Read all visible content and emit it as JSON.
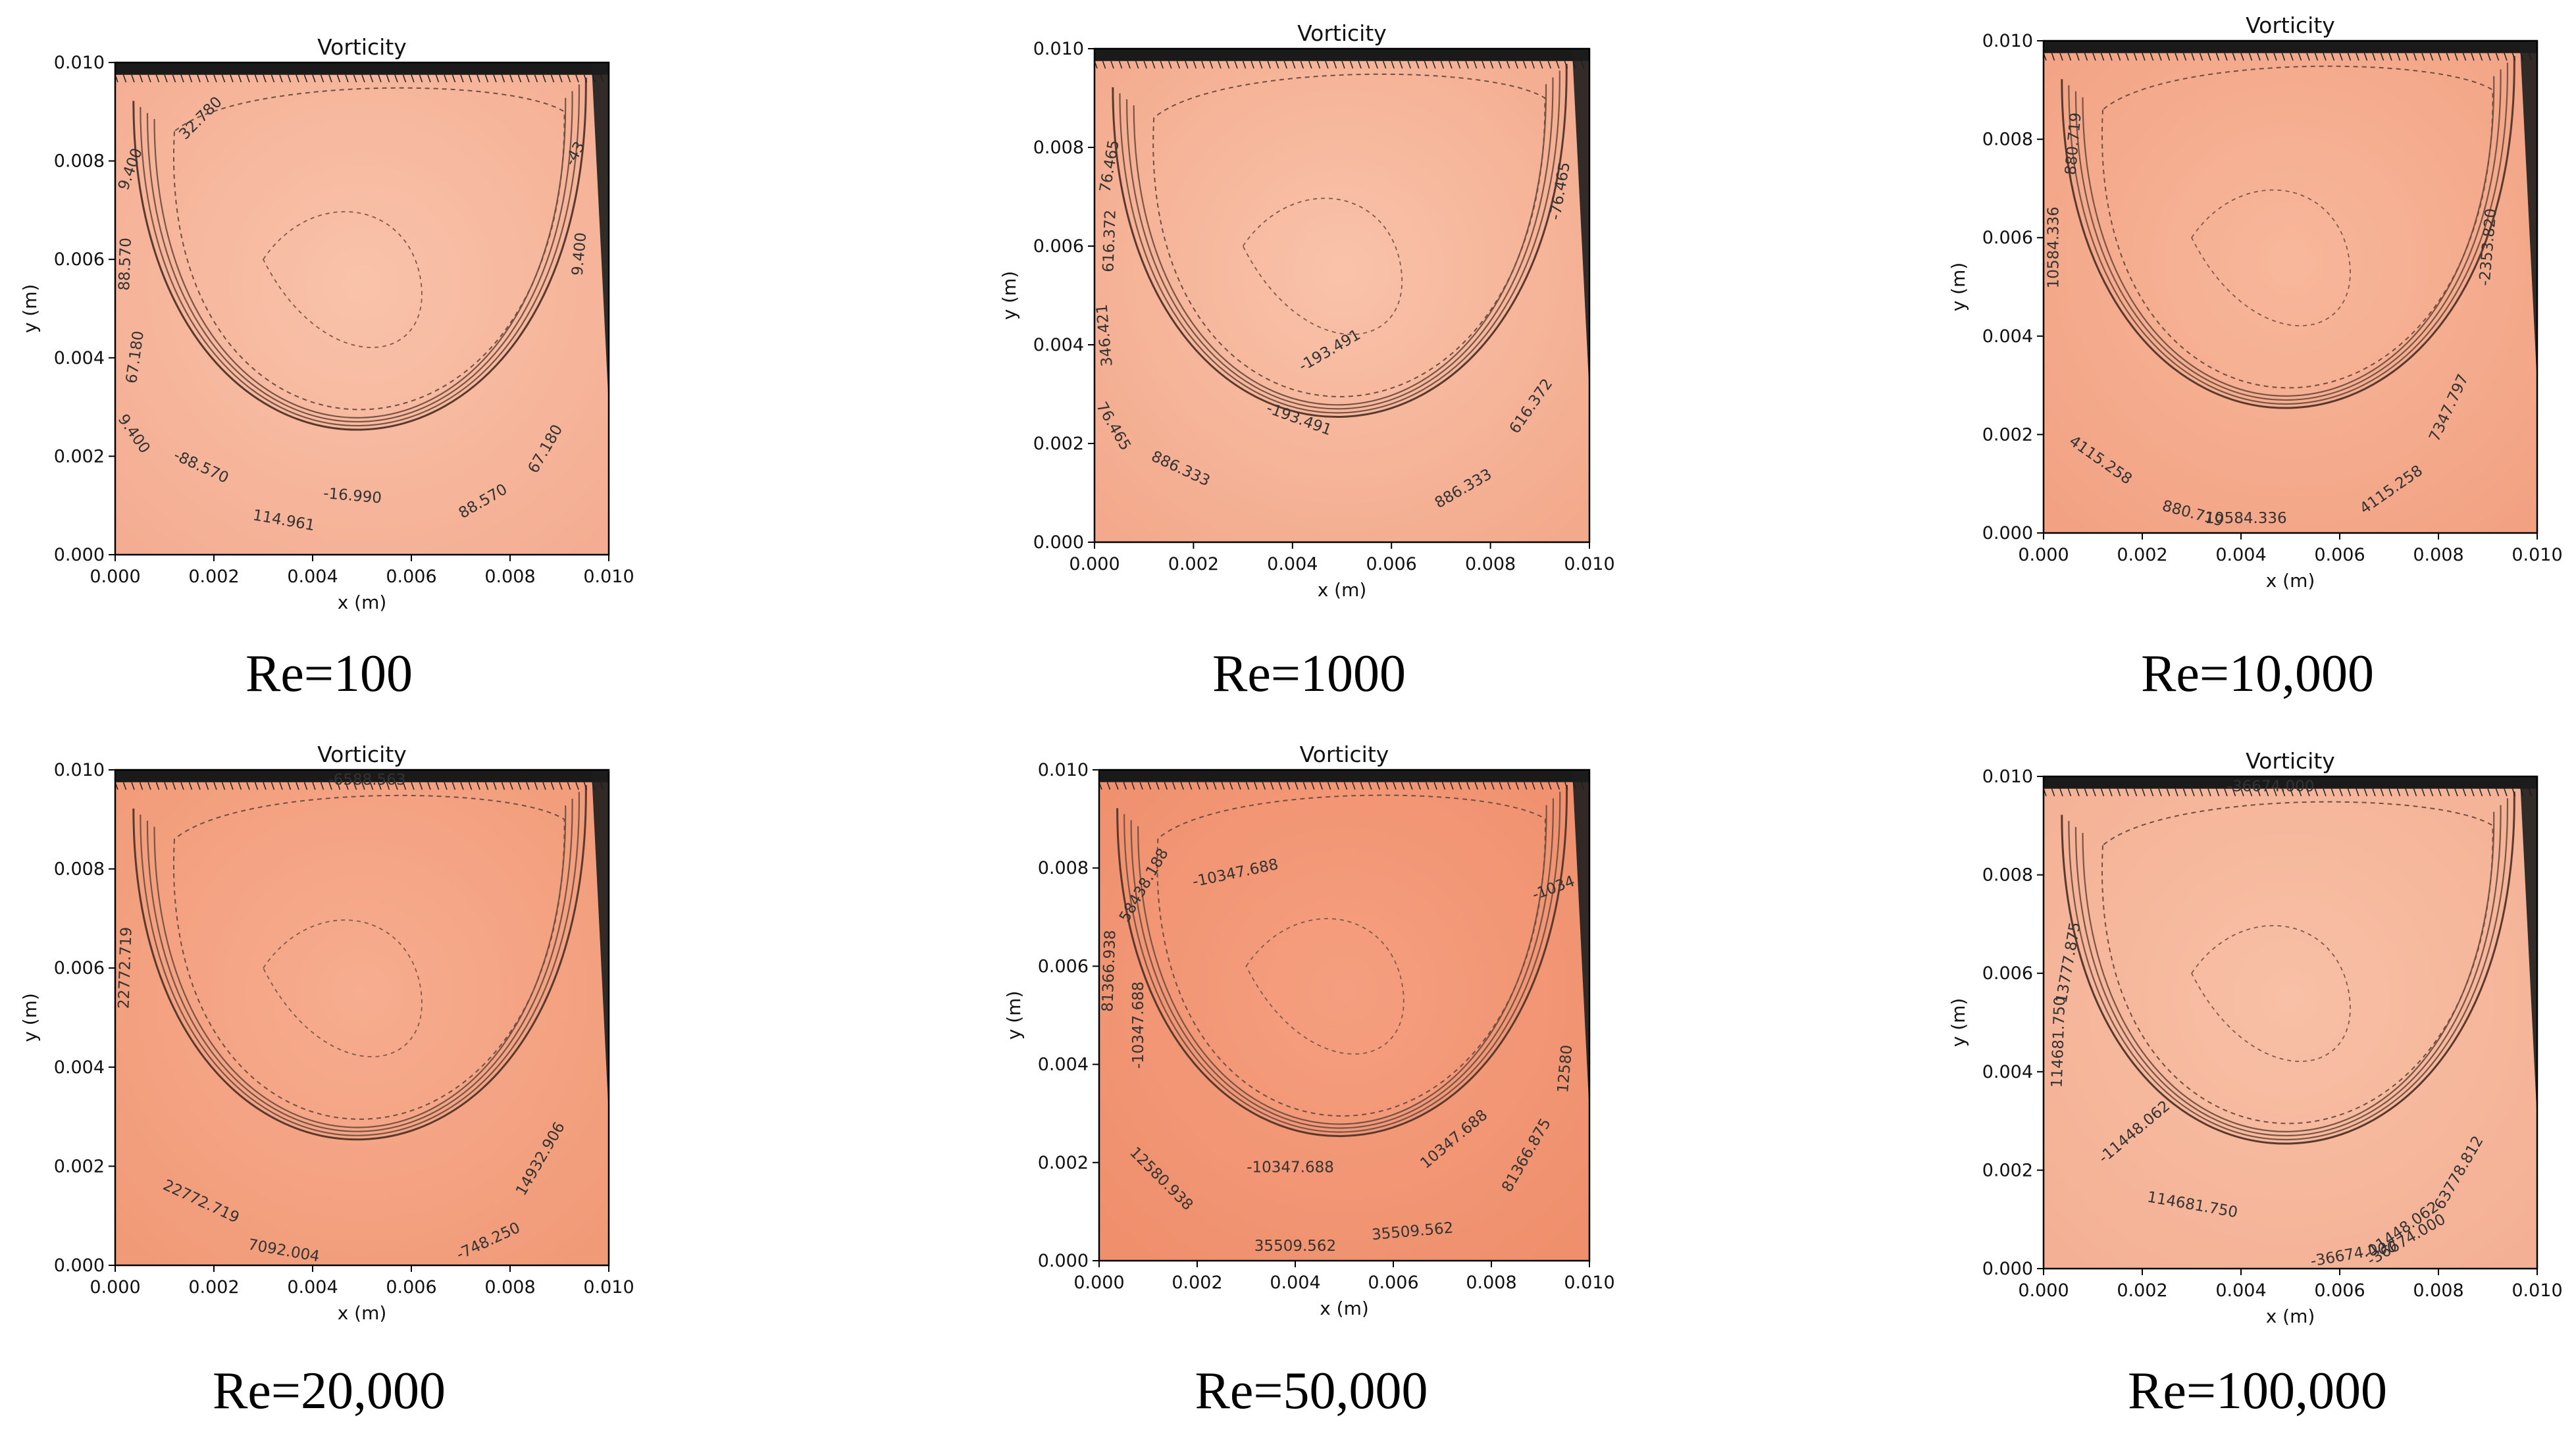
{
  "chart_data": [
    {
      "type": "heatmap",
      "title": "Vorticity",
      "caption": "Re=100",
      "xlabel": "x (m)",
      "ylabel": "y (m)",
      "xlim": [
        0,
        0.01
      ],
      "ylim": [
        0,
        0.01
      ],
      "xticks": [
        "0.000",
        "0.002",
        "0.004",
        "0.006",
        "0.008",
        "0.010"
      ],
      "yticks": [
        "0.000",
        "0.002",
        "0.004",
        "0.006",
        "0.008",
        "0.010"
      ],
      "fill_color": "#f9c3aa",
      "edge_color": "#f4ad92",
      "contour_labels": [
        {
          "text": "32.780",
          "x": 0.0018,
          "y": 0.0088,
          "angle": -45
        },
        {
          "text": "9.400",
          "x": 0.0004,
          "y": 0.0078,
          "angle": -70
        },
        {
          "text": "88.570",
          "x": 0.0003,
          "y": 0.0059,
          "angle": -88
        },
        {
          "text": "67.180",
          "x": 0.0005,
          "y": 0.004,
          "angle": -82
        },
        {
          "text": "9.400",
          "x": 0.0003,
          "y": 0.0024,
          "angle": 55
        },
        {
          "text": "-88.570",
          "x": 0.0017,
          "y": 0.0017,
          "angle": 25
        },
        {
          "text": "114.961",
          "x": 0.0034,
          "y": 0.0006,
          "angle": 10
        },
        {
          "text": "-16.990",
          "x": 0.0048,
          "y": 0.0011,
          "angle": 5
        },
        {
          "text": "88.570",
          "x": 0.0075,
          "y": 0.001,
          "angle": -30
        },
        {
          "text": "67.180",
          "x": 0.0088,
          "y": 0.0021,
          "angle": -60
        },
        {
          "text": "9.400",
          "x": 0.0095,
          "y": 0.0061,
          "angle": -85
        },
        {
          "text": "-43",
          "x": 0.0094,
          "y": 0.0081,
          "angle": -60
        }
      ]
    },
    {
      "type": "heatmap",
      "title": "Vorticity",
      "caption": "Re=1000",
      "xlabel": "x (m)",
      "ylabel": "y (m)",
      "xlim": [
        0,
        0.01
      ],
      "ylim": [
        0,
        0.01
      ],
      "xticks": [
        "0.000",
        "0.002",
        "0.004",
        "0.006",
        "0.008",
        "0.010"
      ],
      "yticks": [
        "0.000",
        "0.002",
        "0.004",
        "0.006",
        "0.008",
        "0.010"
      ],
      "fill_color": "#f9c3aa",
      "edge_color": "#f3a98c",
      "contour_labels": [
        {
          "text": "76.465",
          "x": 0.0004,
          "y": 0.0076,
          "angle": -80
        },
        {
          "text": "616.372",
          "x": 0.0004,
          "y": 0.0061,
          "angle": -88
        },
        {
          "text": "346.421",
          "x": 0.0003,
          "y": 0.0042,
          "angle": -95
        },
        {
          "text": "76.465",
          "x": 0.0003,
          "y": 0.0023,
          "angle": 60
        },
        {
          "text": "886.333",
          "x": 0.0017,
          "y": 0.0014,
          "angle": 25
        },
        {
          "text": "-193.491",
          "x": 0.0048,
          "y": 0.0038,
          "angle": -30
        },
        {
          "text": "-193.491",
          "x": 0.0041,
          "y": 0.0024,
          "angle": 20
        },
        {
          "text": "886.333",
          "x": 0.0075,
          "y": 0.001,
          "angle": -30
        },
        {
          "text": "616.372",
          "x": 0.0089,
          "y": 0.0027,
          "angle": -55
        },
        {
          "text": "-76.465",
          "x": 0.0095,
          "y": 0.0071,
          "angle": -80
        }
      ]
    },
    {
      "type": "heatmap",
      "title": "Vorticity",
      "caption": "Re=10,000",
      "xlabel": "x (m)",
      "ylabel": "y (m)",
      "xlim": [
        0,
        0.01
      ],
      "ylim": [
        0,
        0.01
      ],
      "xticks": [
        "0.000",
        "0.002",
        "0.004",
        "0.006",
        "0.008",
        "0.010"
      ],
      "yticks": [
        "0.000",
        "0.002",
        "0.004",
        "0.006",
        "0.008",
        "0.010"
      ],
      "fill_color": "#f8b79b",
      "edge_color": "#f2a283",
      "contour_labels": [
        {
          "text": "880.719",
          "x": 0.0007,
          "y": 0.0079,
          "angle": -85
        },
        {
          "text": "10584.336",
          "x": 0.0003,
          "y": 0.0058,
          "angle": -90
        },
        {
          "text": "4115.258",
          "x": 0.0011,
          "y": 0.0014,
          "angle": 35
        },
        {
          "text": "880.719",
          "x": 0.003,
          "y": 0.0003,
          "angle": 15
        },
        {
          "text": "10584.336",
          "x": 0.0041,
          "y": 0.0002,
          "angle": 0
        },
        {
          "text": "4115.258",
          "x": 0.0071,
          "y": 0.0008,
          "angle": -35
        },
        {
          "text": "7347.797",
          "x": 0.0083,
          "y": 0.0025,
          "angle": -65
        },
        {
          "text": "-2353.820",
          "x": 0.0091,
          "y": 0.0058,
          "angle": -85
        }
      ]
    },
    {
      "type": "heatmap",
      "title": "Vorticity",
      "caption": "Re=20,000",
      "xlabel": "x (m)",
      "ylabel": "y (m)",
      "xlim": [
        0,
        0.01
      ],
      "ylim": [
        0,
        0.01
      ],
      "xticks": [
        "0.000",
        "0.002",
        "0.004",
        "0.006",
        "0.008",
        "0.010"
      ],
      "yticks": [
        "0.000",
        "0.002",
        "0.004",
        "0.006",
        "0.008",
        "0.010"
      ],
      "fill_color": "#f7ad8f",
      "edge_color": "#f19a78",
      "contour_labels": [
        {
          "text": "22772.719",
          "x": 0.0003,
          "y": 0.006,
          "angle": -88
        },
        {
          "text": "22772.719",
          "x": 0.0017,
          "y": 0.0012,
          "angle": 25
        },
        {
          "text": "7092.004",
          "x": 0.0034,
          "y": 0.0002,
          "angle": 10
        },
        {
          "text": "-748.250",
          "x": 0.0076,
          "y": 0.0004,
          "angle": -25
        },
        {
          "text": "14932.906",
          "x": 0.0087,
          "y": 0.0021,
          "angle": -60
        },
        {
          "text": "-6588.563",
          "x": 0.0051,
          "y": 0.0097,
          "angle": 0
        }
      ]
    },
    {
      "type": "heatmap",
      "title": "Vorticity",
      "caption": "Re=50,000",
      "xlabel": "x (m)",
      "ylabel": "y (m)",
      "xlim": [
        0,
        0.01
      ],
      "ylim": [
        0,
        0.01
      ],
      "xticks": [
        "0.000",
        "0.002",
        "0.004",
        "0.006",
        "0.008",
        "0.010"
      ],
      "yticks": [
        "0.000",
        "0.002",
        "0.004",
        "0.006",
        "0.008",
        "0.010"
      ],
      "fill_color": "#f59f80",
      "edge_color": "#ef8f6c",
      "contour_labels": [
        {
          "text": "-10347.688",
          "x": 0.0028,
          "y": 0.0078,
          "angle": -12
        },
        {
          "text": "58438.188",
          "x": 0.001,
          "y": 0.0076,
          "angle": -60
        },
        {
          "text": "81366.938",
          "x": 0.0003,
          "y": 0.0059,
          "angle": -88
        },
        {
          "text": "-10347.688",
          "x": 0.0009,
          "y": 0.0048,
          "angle": -90
        },
        {
          "text": "-10347.688",
          "x": 0.0039,
          "y": 0.0018,
          "angle": 0
        },
        {
          "text": "12580.938",
          "x": 0.0012,
          "y": 0.0016,
          "angle": 45
        },
        {
          "text": "35509.562",
          "x": 0.004,
          "y": 0.0002,
          "angle": 0
        },
        {
          "text": "35509.562",
          "x": 0.0064,
          "y": 0.0005,
          "angle": -5
        },
        {
          "text": "10347.688",
          "x": 0.0073,
          "y": 0.0024,
          "angle": -40
        },
        {
          "text": "81366.875",
          "x": 0.0088,
          "y": 0.0021,
          "angle": -60
        },
        {
          "text": "12580",
          "x": 0.0096,
          "y": 0.0039,
          "angle": -85
        },
        {
          "text": "-1034",
          "x": 0.0093,
          "y": 0.0075,
          "angle": -20
        }
      ]
    },
    {
      "type": "heatmap",
      "title": "Vorticity",
      "caption": "Re=100,000",
      "xlabel": "x (m)",
      "ylabel": "y (m)",
      "xlim": [
        0,
        0.01
      ],
      "ylim": [
        0,
        0.01
      ],
      "xticks": [
        "0.000",
        "0.002",
        "0.004",
        "0.006",
        "0.008",
        "0.010"
      ],
      "yticks": [
        "0.000",
        "0.002",
        "0.004",
        "0.006",
        "0.008",
        "0.010"
      ],
      "fill_color": "#f8c0a6",
      "edge_color": "#f4b094",
      "contour_labels": [
        {
          "text": "13777.875",
          "x": 0.0006,
          "y": 0.0062,
          "angle": -80
        },
        {
          "text": "114681.750",
          "x": 0.0004,
          "y": 0.0046,
          "angle": -88
        },
        {
          "text": "-11448.062",
          "x": 0.0019,
          "y": 0.0027,
          "angle": -40
        },
        {
          "text": "114681.750",
          "x": 0.003,
          "y": 0.0012,
          "angle": 10
        },
        {
          "text": "-11448.062",
          "x": 0.0073,
          "y": 0.0007,
          "angle": -35
        },
        {
          "text": "-36674.000",
          "x": 0.0074,
          "y": 0.0005,
          "angle": -30
        },
        {
          "text": "-36674.000",
          "x": 0.0063,
          "y": 0.0002,
          "angle": -10
        },
        {
          "text": "-36674.000",
          "x": 0.0046,
          "y": 0.0097,
          "angle": 0
        },
        {
          "text": "63778.812",
          "x": 0.0085,
          "y": 0.0019,
          "angle": -60
        }
      ]
    }
  ]
}
